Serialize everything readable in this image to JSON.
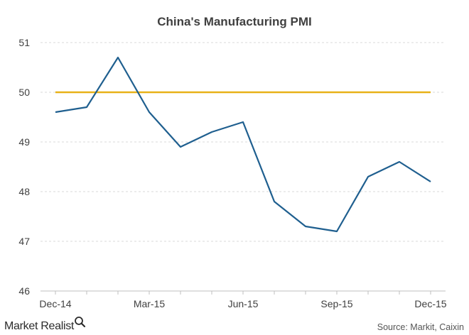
{
  "chart_data": {
    "type": "line",
    "title": "China's Manufacturing PMI",
    "xlabel": "",
    "ylabel": "",
    "x": [
      "Dec-14",
      "Jan-15",
      "Feb-15",
      "Mar-15",
      "Apr-15",
      "May-15",
      "Jun-15",
      "Jul-15",
      "Aug-15",
      "Sep-15",
      "Oct-15",
      "Nov-15",
      "Dec-15"
    ],
    "x_tick_labels": [
      "Dec-14",
      "Mar-15",
      "Jun-15",
      "Sep-15",
      "Dec-15"
    ],
    "y_ticks": [
      46,
      47,
      48,
      49,
      50,
      51
    ],
    "ylim": [
      46,
      51
    ],
    "grid": "horizontal dashed",
    "series": [
      {
        "name": "",
        "color": "#1f5f8f",
        "values": [
          49.6,
          49.7,
          50.7,
          49.6,
          48.9,
          49.2,
          49.4,
          47.8,
          47.3,
          47.2,
          48.3,
          48.6,
          48.2
        ]
      },
      {
        "name": "",
        "color": "#e8b218",
        "values": [
          50,
          50,
          50,
          50,
          50,
          50,
          50,
          50,
          50,
          50,
          50,
          50,
          50
        ]
      }
    ]
  },
  "branding": {
    "logo_text": "Market Realist",
    "logo_icon": "magnifier-icon",
    "source": "Source: Markit, Caixin"
  }
}
